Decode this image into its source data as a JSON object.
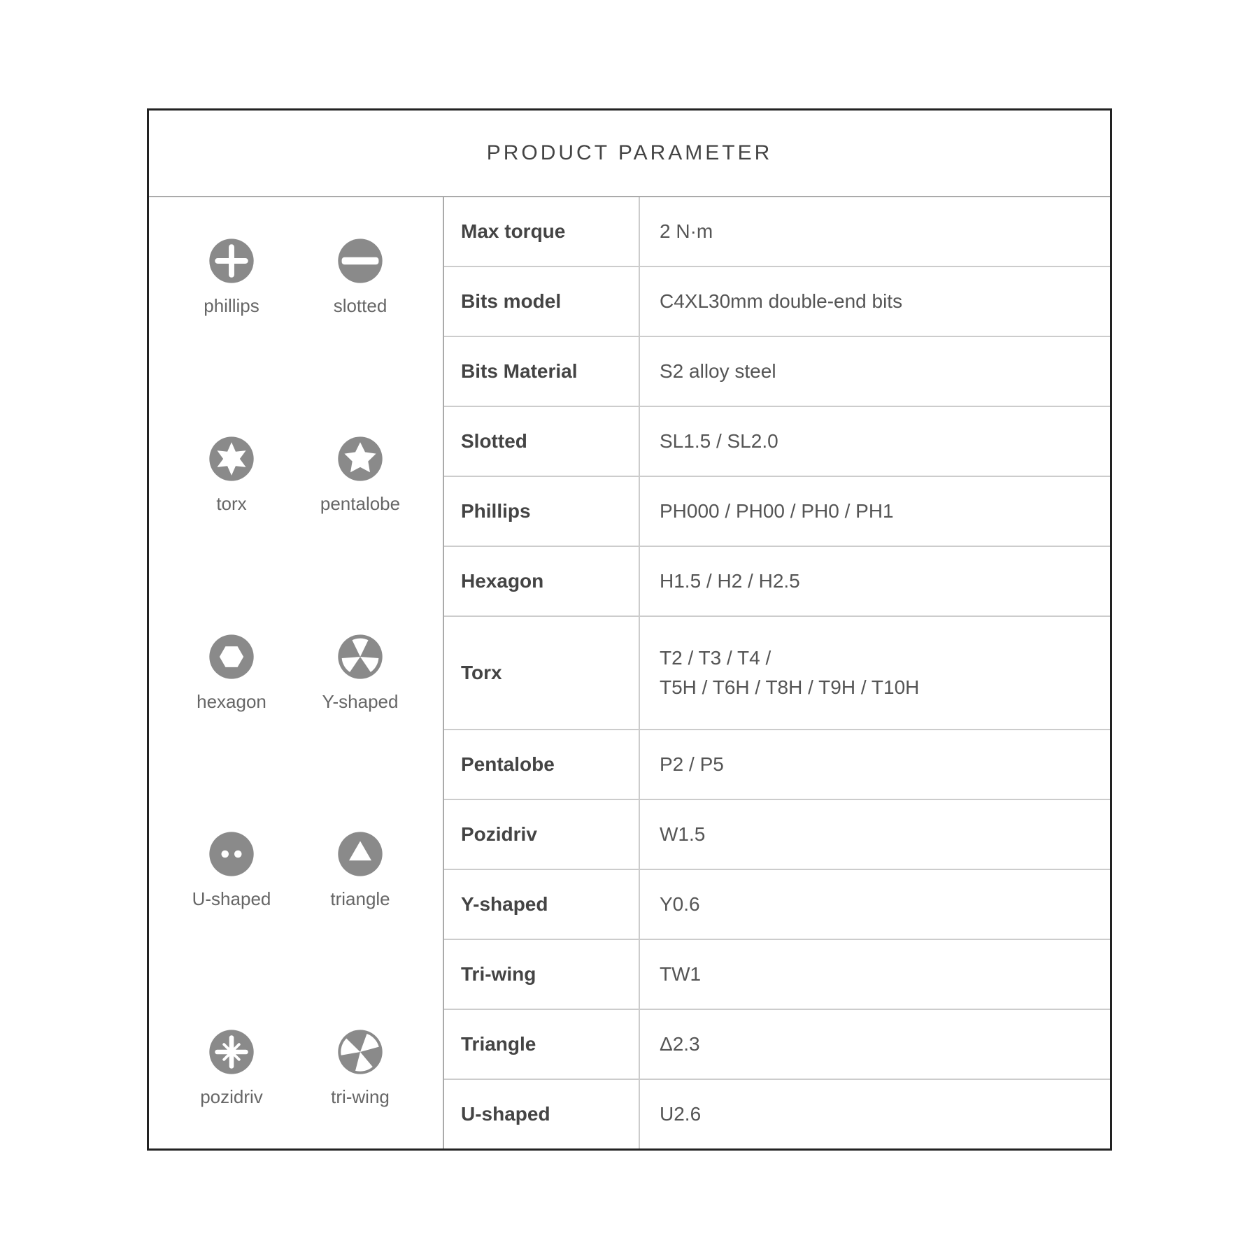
{
  "title": "PRODUCT PARAMETER",
  "icon_color": "#8a8a8a",
  "text_color": "#555555",
  "border_color": "#222222",
  "grid_color": "#cccccc",
  "background_color": "#ffffff",
  "title_fontsize": 30,
  "label_fontsize": 26,
  "key_fontsize": 28,
  "value_fontsize": 28,
  "icons": [
    [
      {
        "name": "phillips",
        "label": "phillips"
      },
      {
        "name": "slotted",
        "label": "slotted"
      }
    ],
    [
      {
        "name": "torx",
        "label": "torx"
      },
      {
        "name": "pentalobe",
        "label": "pentalobe"
      }
    ],
    [
      {
        "name": "hexagon",
        "label": "hexagon"
      },
      {
        "name": "y-shaped",
        "label": "Y-shaped"
      }
    ],
    [
      {
        "name": "u-shaped",
        "label": "U-shaped"
      },
      {
        "name": "triangle",
        "label": "triangle"
      }
    ],
    [
      {
        "name": "pozidriv",
        "label": "pozidriv"
      },
      {
        "name": "tri-wing",
        "label": "tri-wing"
      }
    ]
  ],
  "specs": [
    {
      "key": "Max torque",
      "value": "2 N·m"
    },
    {
      "key": "Bits model",
      "value": "C4XL30mm double-end bits"
    },
    {
      "key": "Bits Material",
      "value": "S2 alloy steel"
    },
    {
      "key": "Slotted",
      "value": "SL1.5 / SL2.0"
    },
    {
      "key": "Phillips",
      "value": "PH000 / PH00 / PH0 / PH1"
    },
    {
      "key": "Hexagon",
      "value": "H1.5 / H2 / H2.5"
    },
    {
      "key": "Torx",
      "value": "T2 / T3 / T4 /\nT5H / T6H / T8H / T9H / T10H",
      "tall": true
    },
    {
      "key": "Pentalobe",
      "value": "P2 / P5"
    },
    {
      "key": "Pozidriv",
      "value": "W1.5"
    },
    {
      "key": "Y-shaped",
      "value": "Y0.6"
    },
    {
      "key": "Tri-wing",
      "value": "TW1"
    },
    {
      "key": "Triangle",
      "value": "Δ2.3"
    },
    {
      "key": "U-shaped",
      "value": "U2.6"
    }
  ]
}
